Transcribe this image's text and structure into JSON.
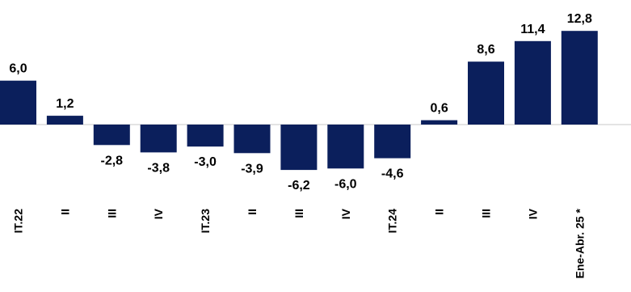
{
  "chart_data": {
    "type": "bar",
    "title": "",
    "xlabel": "",
    "ylabel": "",
    "categories": [
      "IT.22",
      "II",
      "III",
      "IV",
      "IT.23",
      "II",
      "III",
      "IV",
      "IT.24",
      "II",
      "III",
      "IV",
      "Ene-Abr. 25 *"
    ],
    "values": [
      6.0,
      1.2,
      -2.8,
      -3.8,
      -3.0,
      -3.9,
      -6.2,
      -6.0,
      -4.6,
      0.6,
      8.6,
      11.4,
      12.8
    ],
    "value_labels": [
      "6,0",
      "1,2",
      "-2,8",
      "-3,8",
      "-3,0",
      "-3,9",
      "-6,2",
      "-6,0",
      "-4,6",
      "0,6",
      "8,6",
      "11,4",
      "12,8"
    ],
    "ylim": [
      -7,
      13.5
    ],
    "grid": false,
    "legend": "none",
    "bar_color": "#0b1f5c"
  }
}
